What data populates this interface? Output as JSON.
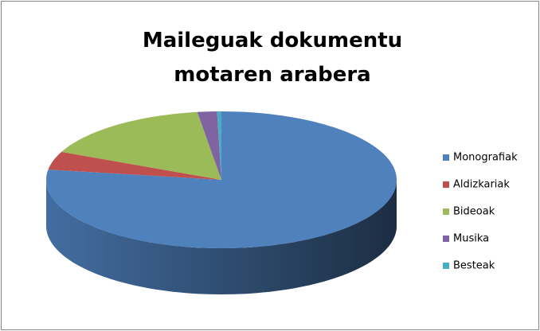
{
  "chart_data": {
    "type": "pie3d",
    "title": "Maileguak dokumentu motaren arabera",
    "categories": [
      "Monografiak",
      "Aldizkariak",
      "Bideoak",
      "Musika",
      "Besteak"
    ],
    "values": [
      77.4,
      4.3,
      16.1,
      1.8,
      0.4
    ],
    "colors": [
      "#4f81bd",
      "#c0504d",
      "#9bbb59",
      "#8064a2",
      "#4bacc6"
    ],
    "legend": "right"
  }
}
